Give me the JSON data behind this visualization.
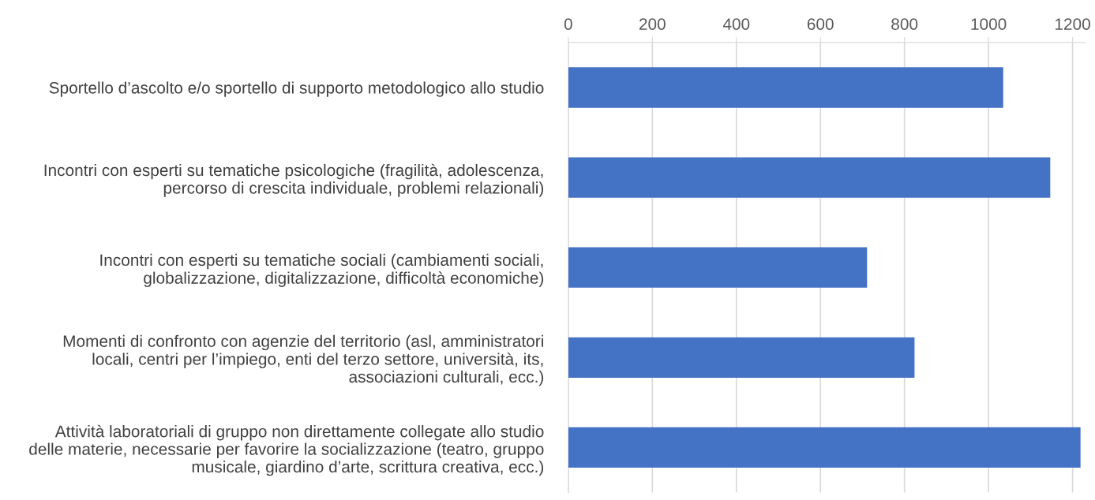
{
  "chart_data": {
    "type": "bar",
    "orientation": "horizontal",
    "categories": [
      "Sportello d’ascolto e/o sportello di supporto metodologico allo studio",
      "Incontri con esperti su tematiche psicologiche (fragilità, adolescenza,\npercorso di crescita individuale, problemi relazionali)",
      "Incontri con esperti su tematiche sociali (cambiamenti sociali,\nglobalizzazione, digitalizzazione, difficoltà economiche)",
      "Momenti di confronto con agenzie del territorio (asl, amministratori\nlocali, centri per l’impiego, enti del terzo settore, università, its,\nassociazioni culturali, ecc.)",
      "Attività laboratoriali di gruppo non direttamente collegate allo studio\ndelle materie, necessarie per favorire la socializzazione (teatro, gruppo\nmusicale, giardino d’arte, scrittura creativa, ecc.)"
    ],
    "values": [
      1035,
      1147,
      711,
      824,
      1219
    ],
    "color": "#4472c4",
    "xlim": [
      0,
      1230
    ],
    "xticks": [
      0,
      200,
      400,
      600,
      800,
      1000,
      1200
    ],
    "grid": "x",
    "legend": false
  }
}
